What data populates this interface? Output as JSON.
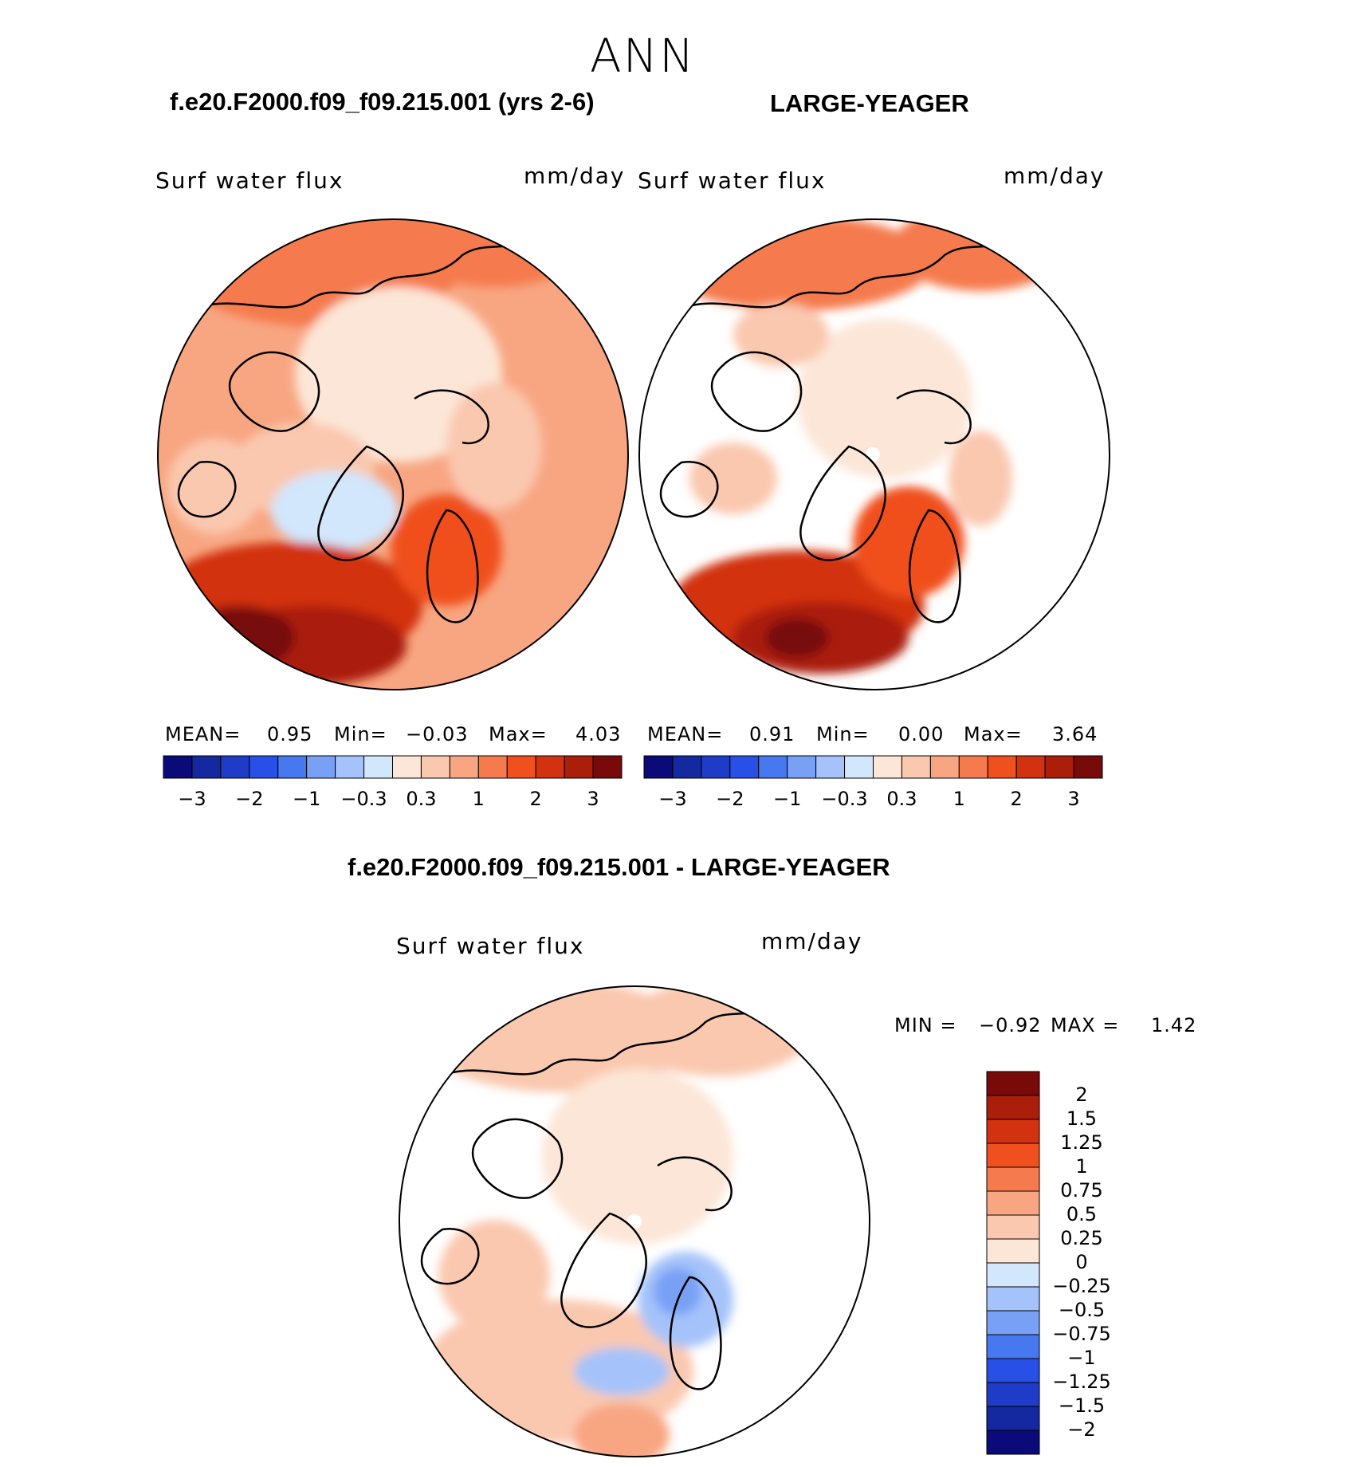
{
  "season": "ANN",
  "panels": [
    {
      "case_title": "f.e20.F2000.f09_f09.215.001 (yrs 2-6)",
      "variable": "Surf water flux",
      "units": "mm/day",
      "stats": {
        "mean_label": "MEAN=",
        "mean": "0.95",
        "min_label": "Min=",
        "min": "−0.03",
        "max_label": "Max=",
        "max": "4.03"
      }
    },
    {
      "case_title": "LARGE-YEAGER",
      "variable": "Surf water flux",
      "units": "mm/day",
      "stats": {
        "mean_label": "MEAN=",
        "mean": "0.91",
        "min_label": "Min=",
        "min": "0.00",
        "max_label": "Max=",
        "max": "3.64"
      }
    }
  ],
  "colorbar": {
    "colors": [
      "#0a0a78",
      "#1428a0",
      "#1e3cc8",
      "#2850e6",
      "#4678f0",
      "#78a0f5",
      "#a5c3fa",
      "#d2e6fc",
      "#fce6d7",
      "#fac8af",
      "#f8a682",
      "#f57a4e",
      "#f0501e",
      "#d23210",
      "#aa1e0a",
      "#780a0a"
    ],
    "tick_labels": [
      "−3",
      "−2",
      "−1",
      "−0.3",
      "0.3",
      "1",
      "2",
      "3"
    ]
  },
  "difference": {
    "title": "f.e20.F2000.f09_f09.215.001 - LARGE-YEAGER",
    "variable": "Surf water flux",
    "units": "mm/day",
    "range_text": {
      "min_label": "MIN =",
      "min": "−0.92",
      "max_label": "MAX =",
      "max": "1.42"
    },
    "colors_top_to_bottom": [
      "#780a0a",
      "#aa1e0a",
      "#d23210",
      "#f0501e",
      "#f57a4e",
      "#f8a682",
      "#fac8af",
      "#fce6d7",
      "#d2e6fc",
      "#a5c3fa",
      "#78a0f5",
      "#4678f0",
      "#2850e6",
      "#1e3cc8",
      "#1428a0",
      "#0a0a78"
    ],
    "tick_labels": [
      "2",
      "1.5",
      "1.25",
      "1",
      "0.75",
      "0.5",
      "0.25",
      "0",
      "−0.25",
      "−0.5",
      "−0.75",
      "−1",
      "−1.25",
      "−1.5",
      "−2"
    ]
  }
}
